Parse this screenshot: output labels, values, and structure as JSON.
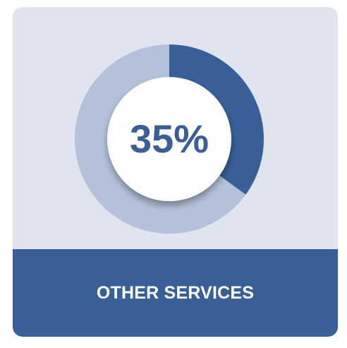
{
  "chart_data": {
    "type": "pie",
    "value_label": "35%",
    "categories": [
      "OTHER SERVICES",
      ""
    ],
    "values": [
      35,
      65
    ],
    "colors": {
      "highlight": "#385f98",
      "remainder": "#b3c2d9",
      "center": "#ffffff",
      "value_text": "#385f98",
      "background": "#dfe4ef"
    }
  },
  "footer": {
    "label": "OTHER SERVICES"
  }
}
